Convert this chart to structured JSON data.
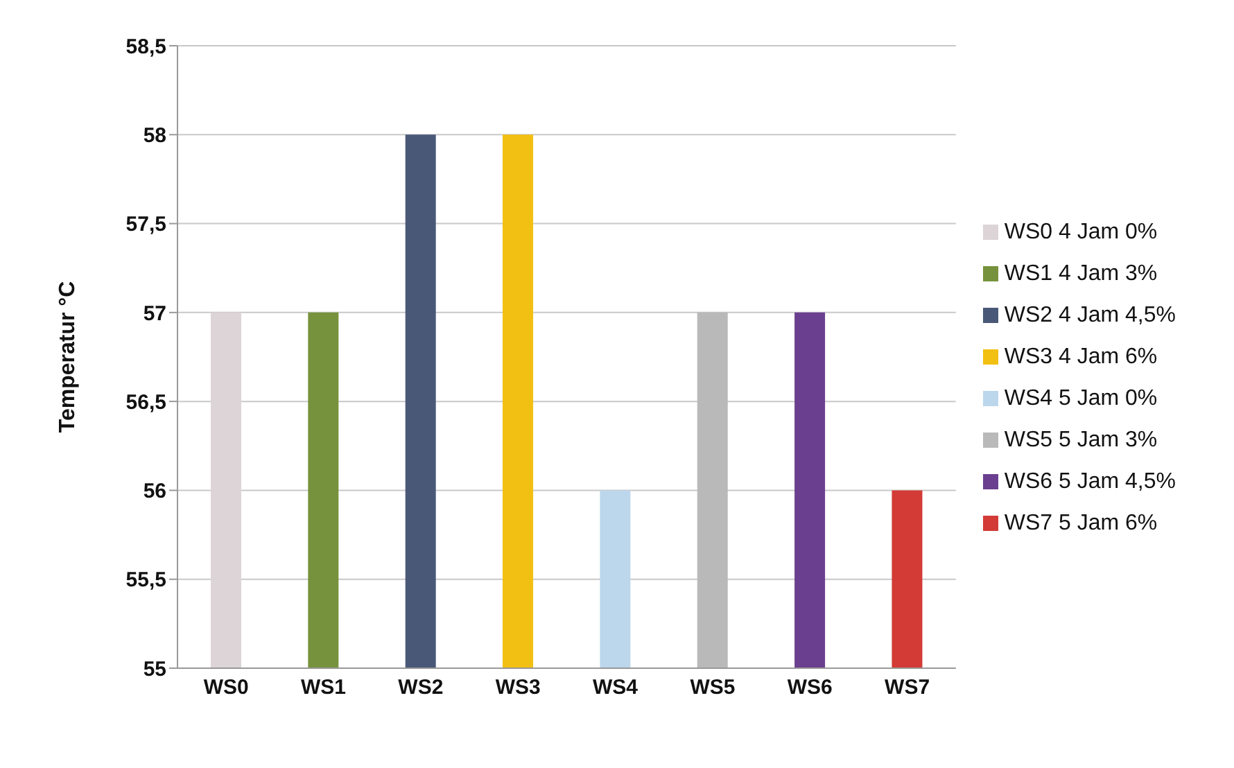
{
  "chart_data": {
    "type": "bar",
    "ylabel": "Temperatur °C",
    "categories": [
      "WS0",
      "WS1",
      "WS2",
      "WS3",
      "WS4",
      "WS5",
      "WS6",
      "WS7"
    ],
    "series": [
      {
        "name": "WS0 4 Jam 0%",
        "color": "#dcd4d6",
        "values": [
          57,
          null,
          null,
          null,
          null,
          null,
          null,
          null
        ]
      },
      {
        "name": "WS1 4 Jam 3%",
        "color": "#76923c",
        "values": [
          null,
          57,
          null,
          null,
          null,
          null,
          null,
          null
        ]
      },
      {
        "name": "WS2 4 Jam 4,5%",
        "color": "#4a5878",
        "values": [
          null,
          null,
          58,
          null,
          null,
          null,
          null,
          null
        ]
      },
      {
        "name": "WS3 4 Jam 6%",
        "color": "#f2c012",
        "values": [
          null,
          null,
          null,
          58,
          null,
          null,
          null,
          null
        ]
      },
      {
        "name": "WS4 5 Jam 0%",
        "color": "#bcd6ec",
        "values": [
          null,
          null,
          null,
          null,
          56,
          null,
          null,
          null
        ]
      },
      {
        "name": "WS5 5 Jam 3%",
        "color": "#b9b9b9",
        "values": [
          null,
          null,
          null,
          null,
          null,
          57,
          null,
          null
        ]
      },
      {
        "name": "WS6 5 Jam 4,5%",
        "color": "#6b3f8f",
        "values": [
          null,
          null,
          null,
          null,
          null,
          null,
          57,
          null
        ]
      },
      {
        "name": "WS7 5 Jam 6%",
        "color": "#d23b36",
        "values": [
          null,
          null,
          null,
          null,
          null,
          null,
          null,
          56
        ]
      }
    ],
    "stacked": true,
    "ylim": [
      55,
      58.5
    ],
    "yticks": [
      55,
      {
        "value": 55.5,
        "label": "55,5"
      },
      56,
      {
        "value": 56.5,
        "label": "56,5"
      },
      57,
      {
        "value": 57.5,
        "label": "57,5"
      },
      58,
      {
        "value": 58.5,
        "label": "58,5"
      }
    ],
    "grid": "y",
    "legend": "right"
  }
}
